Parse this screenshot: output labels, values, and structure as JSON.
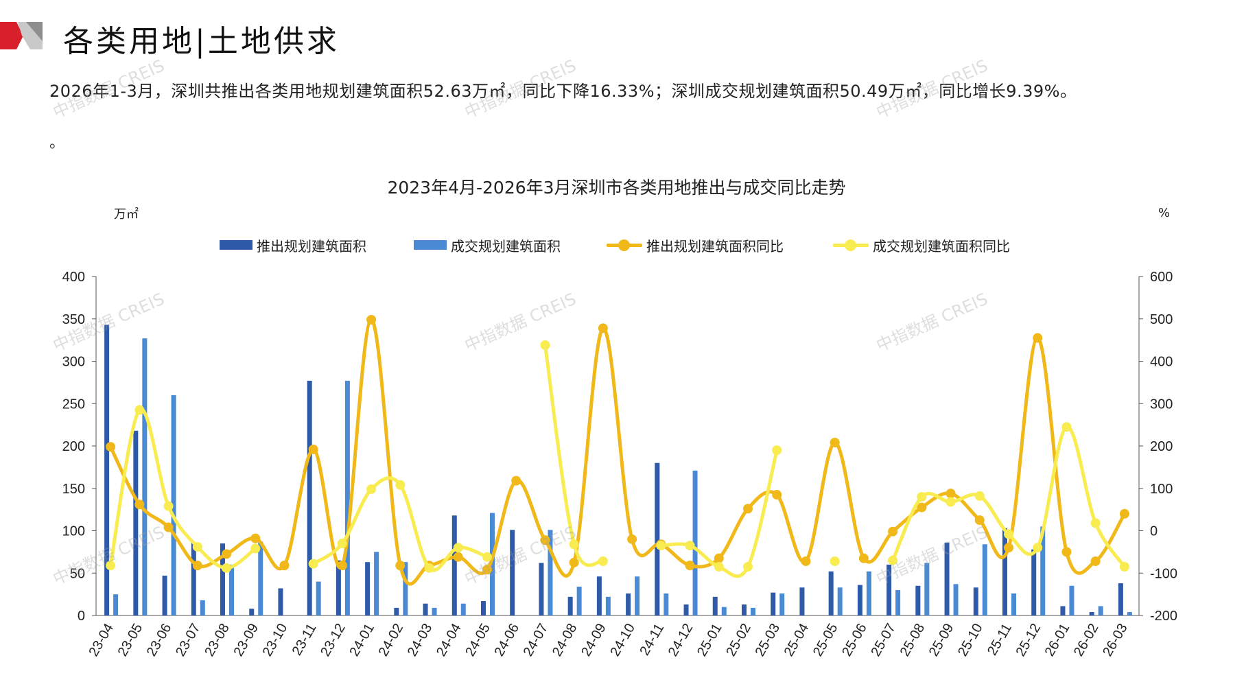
{
  "header": {
    "title": "各类用地|土地供求"
  },
  "summary": "2026年1-3月，深圳共推出各类用地规划建筑面积52.63万㎡，同比下降16.33%；深圳成交规划建筑面积50.49万㎡，同比增长9.39%。",
  "summary_tail": "。",
  "watermarks": [
    "中指数据 CREIS"
  ],
  "colors": {
    "bar_supply": "#2E5AA8",
    "bar_deal": "#4A8AD4",
    "line_supply": "#F0B818",
    "line_deal": "#F8EC50"
  },
  "chart_data": {
    "type": "bar+line",
    "title": "2023年4月-2026年3月深圳市各类用地推出与成交同比走势",
    "ylabel_left": "万㎡",
    "ylabel_right": "%",
    "ylim_left": [
      0,
      400
    ],
    "yticks_left": [
      0,
      50,
      100,
      150,
      200,
      250,
      300,
      350,
      400
    ],
    "ylim_right": [
      -200,
      600
    ],
    "yticks_right": [
      -200,
      -100,
      0,
      100,
      200,
      300,
      400,
      500,
      600
    ],
    "legend_position": "top",
    "categories": [
      "23-04",
      "23-05",
      "23-06",
      "23-07",
      "23-08",
      "23-09",
      "23-10",
      "23-11",
      "23-12",
      "24-01",
      "24-02",
      "24-03",
      "24-04",
      "24-05",
      "24-06",
      "24-07",
      "24-08",
      "24-09",
      "24-10",
      "24-11",
      "24-12",
      "25-01",
      "25-02",
      "25-03",
      "25-04",
      "25-05",
      "25-06",
      "25-07",
      "25-08",
      "25-09",
      "25-10",
      "25-11",
      "25-12",
      "26-01",
      "26-02",
      "26-03"
    ],
    "series": [
      {
        "name": "推出规划建筑面积",
        "type": "bar",
        "axis": "left",
        "values": [
          343,
          218,
          47,
          86,
          85,
          8,
          32,
          277,
          65,
          63,
          9,
          14,
          118,
          17,
          101,
          62,
          22,
          46,
          26,
          180,
          13,
          22,
          13,
          27,
          33,
          52,
          36,
          60,
          35,
          86,
          33,
          103,
          78,
          11,
          4,
          38
        ]
      },
      {
        "name": "成交规划建筑面积",
        "type": "bar",
        "axis": "left",
        "values": [
          25,
          327,
          260,
          18,
          60,
          87,
          0,
          40,
          277,
          75,
          63,
          9,
          14,
          121,
          0,
          101,
          34,
          22,
          46,
          26,
          171,
          10,
          9,
          26,
          0,
          33,
          52,
          30,
          62,
          37,
          84,
          26,
          105,
          35,
          11,
          4
        ]
      },
      {
        "name": "推出规划建筑面积同比",
        "type": "line",
        "axis": "right",
        "values": [
          198,
          62,
          8,
          -82,
          -55,
          -18,
          -82,
          192,
          -82,
          498,
          -82,
          -82,
          -62,
          -92,
          118,
          -22,
          -75,
          478,
          -20,
          -32,
          -82,
          -65,
          52,
          85,
          -72,
          208,
          -65,
          -2,
          55,
          88,
          25,
          -40,
          455,
          -50,
          -72,
          40
        ]
      },
      {
        "name": "成交规划建筑面积同比",
        "type": "line",
        "axis": "right",
        "values": [
          -82,
          285,
          58,
          -38,
          -88,
          -42,
          null,
          -78,
          -30,
          98,
          108,
          -88,
          -40,
          -62,
          null,
          438,
          -32,
          -72,
          null,
          -35,
          -35,
          -85,
          -85,
          190,
          null,
          -72,
          null,
          -70,
          80,
          68,
          82,
          -8,
          -40,
          245,
          18,
          -85
        ]
      }
    ]
  }
}
